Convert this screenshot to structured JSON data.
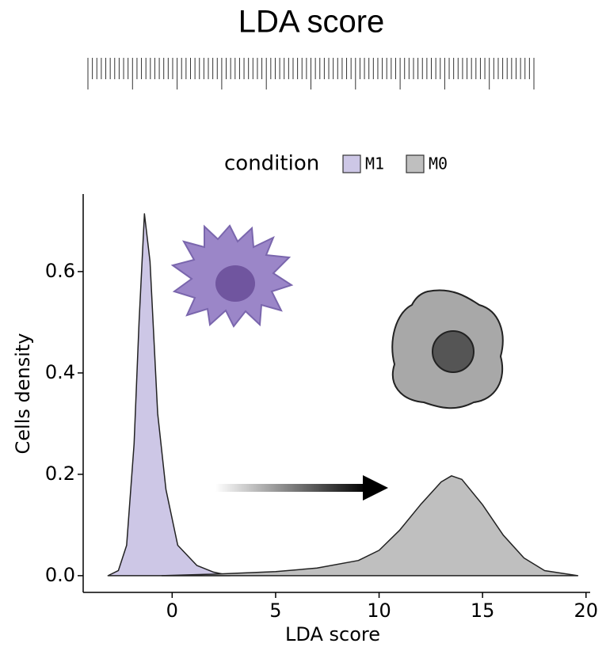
{
  "chart_data": {
    "type": "density",
    "title": "LDA score",
    "x_label": "LDA score",
    "y_label": "Cells density",
    "legend_title": "condition",
    "xlim": [
      -4.3,
      20.2
    ],
    "ylim": [
      -0.033,
      0.753
    ],
    "xticks": [
      0,
      5,
      10,
      15,
      20
    ],
    "yticks": [
      {
        "value": 0,
        "label": "0.0"
      },
      0.2,
      0.4,
      {
        "value": 0.6,
        "label": "0.6"
      }
    ],
    "series": [
      {
        "name": "M1",
        "color": "#cdc7e6",
        "x": [
          -3.1,
          -2.6,
          -2.2,
          -1.84,
          -1.6,
          -1.34,
          -1.07,
          -0.7,
          -0.3,
          0.27,
          1.2,
          2.0,
          2.8
        ],
        "values": [
          0,
          0.01,
          0.06,
          0.26,
          0.5,
          0.714,
          0.62,
          0.32,
          0.17,
          0.06,
          0.02,
          0.007,
          0
        ]
      },
      {
        "name": "M0",
        "color": "#bfbfbf",
        "x": [
          -0.5,
          2,
          5,
          7,
          9,
          10,
          11,
          12,
          13,
          13.5,
          14,
          15,
          16,
          17,
          18,
          19.6
        ],
        "values": [
          0,
          0.003,
          0.008,
          0.015,
          0.03,
          0.05,
          0.09,
          0.14,
          0.185,
          0.197,
          0.19,
          0.14,
          0.08,
          0.035,
          0.01,
          0
        ]
      }
    ]
  }
}
